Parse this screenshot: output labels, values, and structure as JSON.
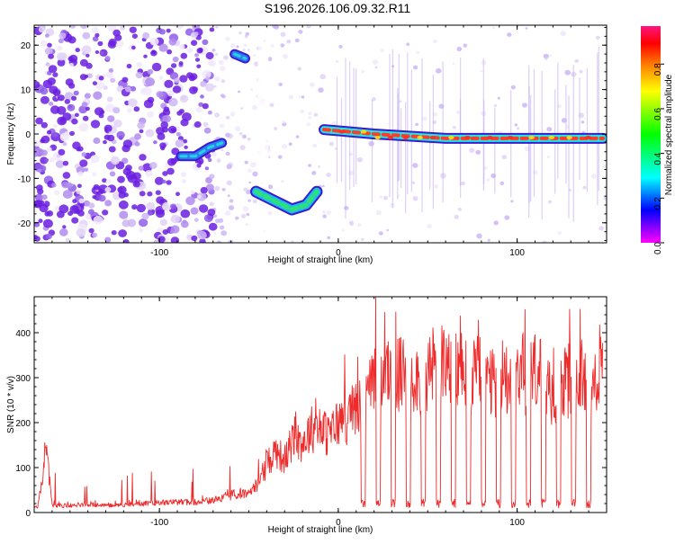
{
  "title": "S196.2026.106.09.32.R11",
  "colors": {
    "snr_line": "#ee2a2a",
    "scatter_faint": "#e2d4f7",
    "scatter_mid": "#b18cf0",
    "scatter_dark": "#6a1ee0",
    "axis": "#000000"
  },
  "chart_data": [
    {
      "type": "heatmap",
      "name": "spectrogram",
      "xlabel": "Height of straight line (km)",
      "ylabel": "Frequency (Hz)",
      "xlim": [
        -170,
        150
      ],
      "ylim": [
        -24.5,
        24.5
      ],
      "xticks": [
        -100,
        0,
        100
      ],
      "xtick_labels": [
        "-100",
        "0",
        "100"
      ],
      "yticks": [
        -20,
        -10,
        0,
        10,
        20
      ],
      "ytick_labels": [
        "-20",
        "-10",
        "0",
        "10",
        "20"
      ],
      "colorbar": {
        "label": "Normalized spectral amplitude",
        "range": [
          0,
          0.97
        ],
        "ticks": [
          0.0,
          0.2,
          0.4,
          0.6,
          0.8
        ],
        "tick_labels": [
          "0.0",
          "0.2",
          "0.4",
          "0.6",
          "0.8"
        ],
        "stops": [
          "#ff00ff",
          "#0000ff",
          "#00ffff",
          "#00ff00",
          "#ffff00",
          "#ff8000",
          "#ff0000",
          "#ff1480"
        ]
      },
      "tracks": [
        {
          "segment": "drift",
          "points": [
            [
              -88,
              -5
            ],
            [
              -80,
              -5
            ],
            [
              -72,
              -3
            ],
            [
              -65,
              -2
            ]
          ],
          "peak_amplitude": 0.35
        },
        {
          "segment": "upper",
          "points": [
            [
              -58,
              18
            ],
            [
              -52,
              17
            ]
          ],
          "peak_amplitude": 0.4
        },
        {
          "segment": "lower",
          "points": [
            [
              -46,
              -13
            ],
            [
              -36,
              -15
            ],
            [
              -26,
              -17
            ],
            [
              -18,
              -16
            ],
            [
              -12,
              -13
            ]
          ],
          "peak_amplitude": 0.45
        },
        {
          "segment": "main",
          "points": [
            [
              -8,
              1
            ],
            [
              20,
              0
            ],
            [
              60,
              -1
            ],
            [
              100,
              -1
            ],
            [
              148,
              -1
            ]
          ],
          "peak_amplitude": 0.9
        }
      ]
    },
    {
      "type": "line",
      "name": "snr",
      "xlabel": "Height of straight line (km)",
      "ylabel": "SNR (10 * v/v)",
      "xlim": [
        -170,
        150
      ],
      "ylim": [
        0,
        480
      ],
      "xticks": [
        -100,
        0,
        100
      ],
      "xtick_labels": [
        "-100",
        "0",
        "100"
      ],
      "yticks": [
        0,
        100,
        200,
        300,
        400
      ],
      "ytick_labels": [
        "0",
        "100",
        "200",
        "300",
        "400"
      ],
      "x": [
        -168,
        -163,
        -160,
        -150,
        -140,
        -130,
        -120,
        -110,
        -100,
        -90,
        -80,
        -70,
        -60,
        -50,
        -45,
        -40,
        -35,
        -30,
        -25,
        -20,
        -15,
        -10,
        -5,
        0,
        5,
        10,
        15,
        20,
        25,
        30,
        35,
        40,
        45,
        50,
        55,
        60,
        65,
        70,
        75,
        80,
        85,
        90,
        95,
        100,
        105,
        110,
        115,
        120,
        125,
        130,
        135,
        140,
        145,
        148
      ],
      "y": [
        15,
        175,
        20,
        20,
        25,
        20,
        22,
        25,
        28,
        30,
        30,
        35,
        50,
        60,
        80,
        140,
        180,
        150,
        210,
        200,
        240,
        240,
        220,
        260,
        270,
        300,
        320,
        370,
        400,
        410,
        390,
        420,
        380,
        400,
        440,
        420,
        400,
        410,
        380,
        420,
        360,
        380,
        400,
        420,
        390,
        410,
        380,
        350,
        360,
        380,
        400,
        340,
        380,
        400
      ],
      "dips": {
        "start": 14,
        "spacing": 8.4,
        "count": 16,
        "min_value": 10
      },
      "series_color": "#ee2a2a"
    }
  ]
}
